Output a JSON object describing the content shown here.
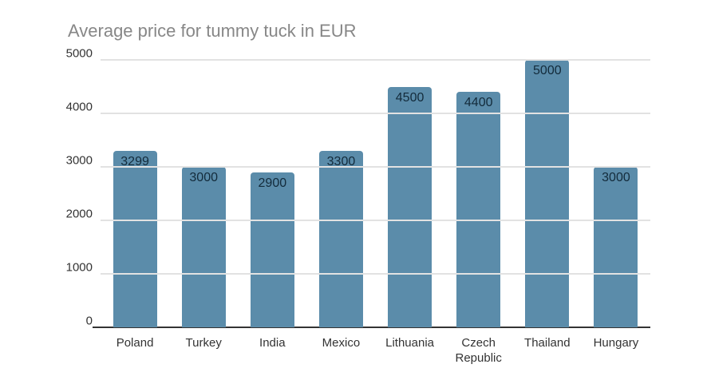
{
  "chart_data": {
    "type": "bar",
    "title": "Average price for tummy tuck in EUR",
    "categories": [
      "Poland",
      "Turkey",
      "India",
      "Mexico",
      "Lithuania",
      "Czech Republic",
      "Thailand",
      "Hungary"
    ],
    "values": [
      3299,
      3000,
      2900,
      3300,
      4500,
      4400,
      5000,
      3000
    ],
    "data_labels": [
      "3299",
      "3000",
      "2900",
      "3300",
      "4500",
      "4400",
      "5000",
      "3000"
    ],
    "xlabel": "",
    "ylabel": "",
    "ylim": [
      0,
      5000
    ],
    "yticks": [
      0,
      1000,
      2000,
      3000,
      4000,
      5000
    ],
    "ytick_labels": [
      "0",
      "1000",
      "2000",
      "3000",
      "4000",
      "5000"
    ],
    "grid": "horizontal",
    "legend": "none",
    "colors": {
      "bar": "#5b8caa",
      "bar_label": "#132b3b",
      "title": "#878787",
      "axis_label": "#333333",
      "gridline": "#e2e2e2",
      "baseline": "#333333",
      "background": "#ffffff"
    }
  }
}
